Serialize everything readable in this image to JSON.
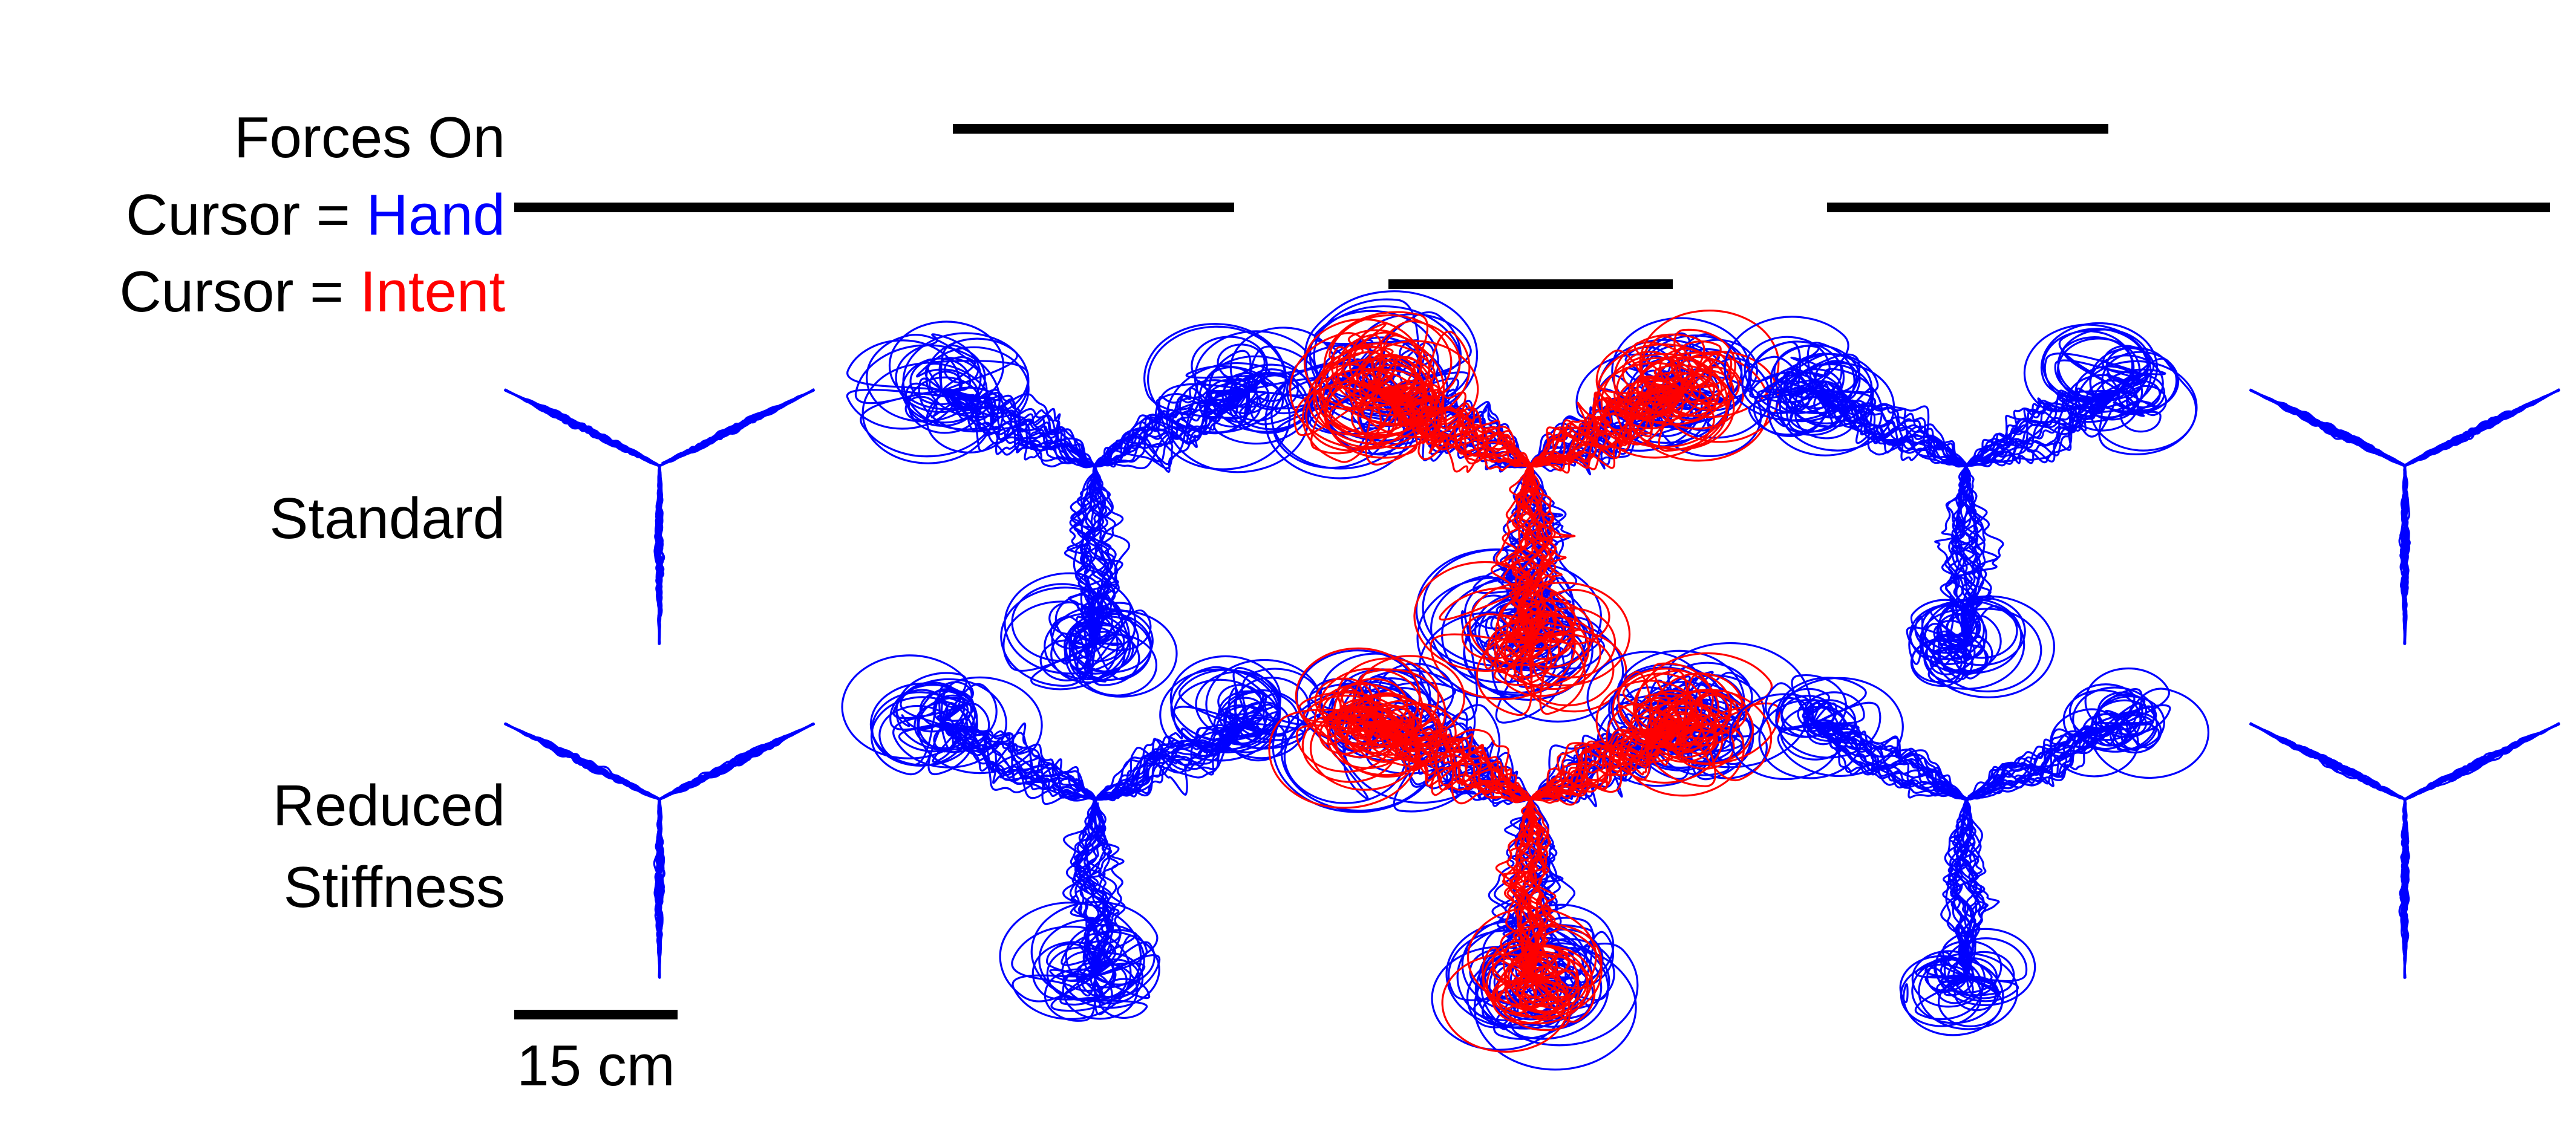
{
  "labels": {
    "forces_on": "Forces On",
    "cursor_prefix_hand": "Cursor = ",
    "cursor_hand_word": "Hand",
    "cursor_prefix_intent": "Cursor = ",
    "cursor_intent_word": "Intent",
    "row_standard": "Standard",
    "row_reduced_line1": "Reduced",
    "row_reduced_line2": "Stiffness",
    "scale_label": "15 cm"
  },
  "colors": {
    "text": "#000000",
    "hand": "#0000ff",
    "intent": "#ff0000",
    "bars": "#000000"
  },
  "conditions": {
    "columns": 5,
    "forces_on": [
      false,
      true,
      true,
      true,
      false
    ],
    "cursor_hand": [
      true,
      true,
      false,
      true,
      true
    ],
    "cursor_intent": [
      false,
      false,
      true,
      false,
      false
    ]
  },
  "trajectories": {
    "rows": [
      "Standard",
      "Reduced Stiffness"
    ],
    "messiness_by_column": [
      0.08,
      1.0,
      1.25,
      0.85,
      0.08
    ],
    "red_overlay_by_column": [
      false,
      false,
      true,
      false,
      false
    ],
    "scale_bar_cm": 15
  }
}
